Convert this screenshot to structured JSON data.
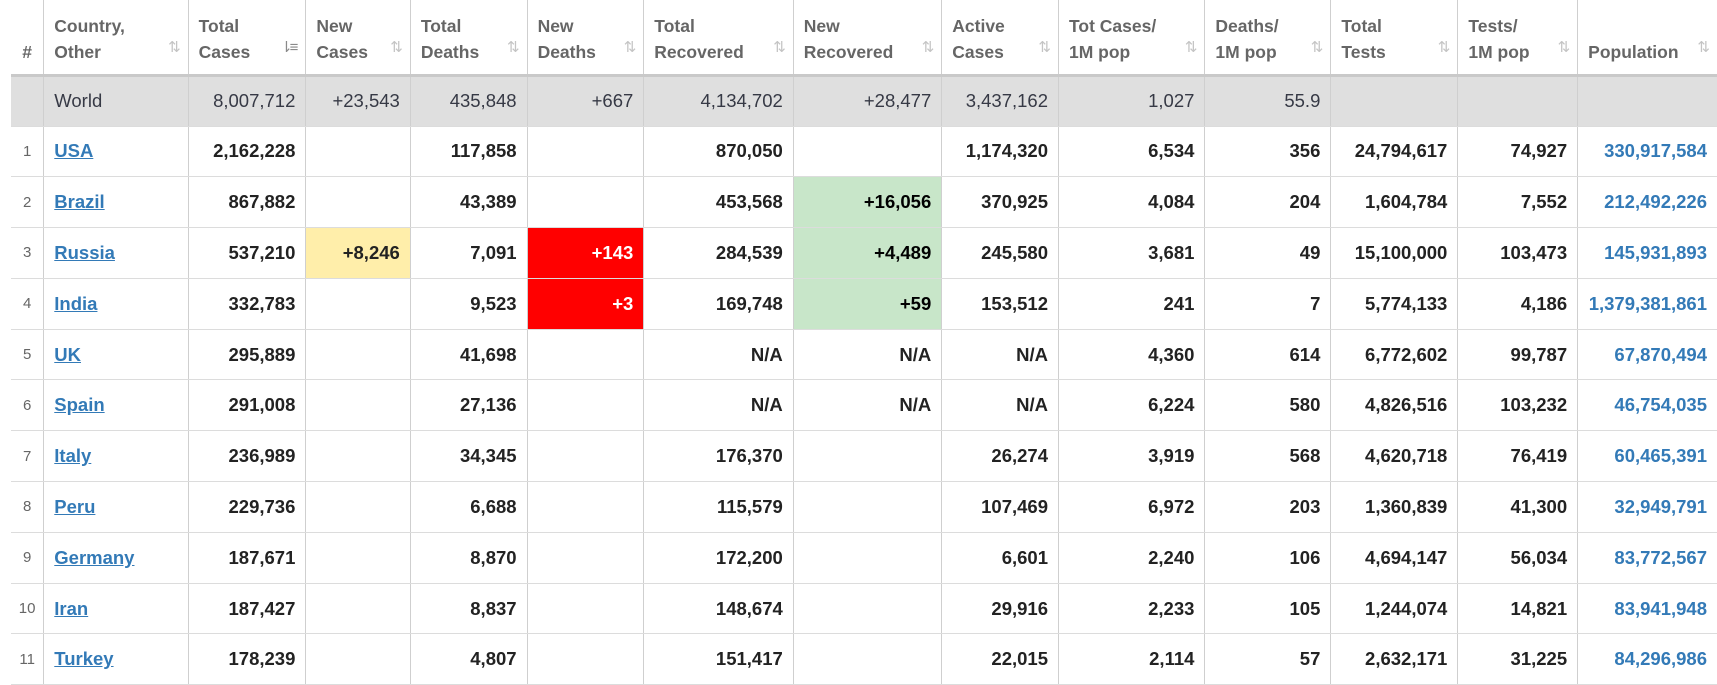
{
  "colors": {
    "new_cases_bg": "#ffeeaa",
    "new_deaths_bg": "#ff0000",
    "new_recovered_bg": "#c8e6c9",
    "link": "#337ab7",
    "world_row_bg": "#dfdfdf"
  },
  "headers": [
    {
      "key": "idx",
      "line1": "#",
      "line2": "",
      "sort_icon": ""
    },
    {
      "key": "country",
      "line1": "Country,",
      "line2": "Other",
      "sort_icon": "⇅"
    },
    {
      "key": "total_cases",
      "line1": "Total",
      "line2": "Cases",
      "sort_icon": "⇂≡"
    },
    {
      "key": "new_cases",
      "line1": "New",
      "line2": "Cases",
      "sort_icon": "⇅"
    },
    {
      "key": "total_deaths",
      "line1": "Total",
      "line2": "Deaths",
      "sort_icon": "⇅"
    },
    {
      "key": "new_deaths",
      "line1": "New",
      "line2": "Deaths",
      "sort_icon": "⇅"
    },
    {
      "key": "total_recovered",
      "line1": "Total",
      "line2": "Recovered",
      "sort_icon": "⇅"
    },
    {
      "key": "new_recovered",
      "line1": "New",
      "line2": "Recovered",
      "sort_icon": "⇅"
    },
    {
      "key": "active",
      "line1": "Active",
      "line2": "Cases",
      "sort_icon": "⇅"
    },
    {
      "key": "cases_per_m",
      "line1": "Tot Cases/",
      "line2": "1M pop",
      "sort_icon": "⇅"
    },
    {
      "key": "deaths_per_m",
      "line1": "Deaths/",
      "line2": "1M pop",
      "sort_icon": "⇅"
    },
    {
      "key": "total_tests",
      "line1": "Total",
      "line2": "Tests",
      "sort_icon": "⇅"
    },
    {
      "key": "tests_per_m",
      "line1": "Tests/",
      "line2": "1M pop",
      "sort_icon": "⇅"
    },
    {
      "key": "population",
      "line1": "",
      "line2": "Population",
      "sort_icon": "⇅"
    }
  ],
  "world": {
    "idx": "",
    "country": "World",
    "total_cases": "8,007,712",
    "new_cases": "+23,543",
    "total_deaths": "435,848",
    "new_deaths": "+667",
    "total_recovered": "4,134,702",
    "new_recovered": "+28,477",
    "active": "3,437,162",
    "cases_per_m": "1,027",
    "deaths_per_m": "55.9",
    "total_tests": "",
    "tests_per_m": "",
    "population": ""
  },
  "rows": [
    {
      "idx": "1",
      "country": "USA",
      "total_cases": "2,162,228",
      "new_cases": "",
      "total_deaths": "117,858",
      "new_deaths": "",
      "total_recovered": "870,050",
      "new_recovered": "",
      "active": "1,174,320",
      "cases_per_m": "6,534",
      "deaths_per_m": "356",
      "total_tests": "24,794,617",
      "tests_per_m": "74,927",
      "population": "330,917,584"
    },
    {
      "idx": "2",
      "country": "Brazil",
      "total_cases": "867,882",
      "new_cases": "",
      "total_deaths": "43,389",
      "new_deaths": "",
      "total_recovered": "453,568",
      "new_recovered": "+16,056",
      "active": "370,925",
      "cases_per_m": "4,084",
      "deaths_per_m": "204",
      "total_tests": "1,604,784",
      "tests_per_m": "7,552",
      "population": "212,492,226"
    },
    {
      "idx": "3",
      "country": "Russia",
      "total_cases": "537,210",
      "new_cases": "+8,246",
      "total_deaths": "7,091",
      "new_deaths": "+143",
      "total_recovered": "284,539",
      "new_recovered": "+4,489",
      "active": "245,580",
      "cases_per_m": "3,681",
      "deaths_per_m": "49",
      "total_tests": "15,100,000",
      "tests_per_m": "103,473",
      "population": "145,931,893"
    },
    {
      "idx": "4",
      "country": "India",
      "total_cases": "332,783",
      "new_cases": "",
      "total_deaths": "9,523",
      "new_deaths": "+3",
      "total_recovered": "169,748",
      "new_recovered": "+59",
      "active": "153,512",
      "cases_per_m": "241",
      "deaths_per_m": "7",
      "total_tests": "5,774,133",
      "tests_per_m": "4,186",
      "population": "1,379,381,861"
    },
    {
      "idx": "5",
      "country": "UK",
      "total_cases": "295,889",
      "new_cases": "",
      "total_deaths": "41,698",
      "new_deaths": "",
      "total_recovered": "N/A",
      "new_recovered": "N/A",
      "active": "N/A",
      "cases_per_m": "4,360",
      "deaths_per_m": "614",
      "total_tests": "6,772,602",
      "tests_per_m": "99,787",
      "population": "67,870,494"
    },
    {
      "idx": "6",
      "country": "Spain",
      "total_cases": "291,008",
      "new_cases": "",
      "total_deaths": "27,136",
      "new_deaths": "",
      "total_recovered": "N/A",
      "new_recovered": "N/A",
      "active": "N/A",
      "cases_per_m": "6,224",
      "deaths_per_m": "580",
      "total_tests": "4,826,516",
      "tests_per_m": "103,232",
      "population": "46,754,035"
    },
    {
      "idx": "7",
      "country": "Italy",
      "total_cases": "236,989",
      "new_cases": "",
      "total_deaths": "34,345",
      "new_deaths": "",
      "total_recovered": "176,370",
      "new_recovered": "",
      "active": "26,274",
      "cases_per_m": "3,919",
      "deaths_per_m": "568",
      "total_tests": "4,620,718",
      "tests_per_m": "76,419",
      "population": "60,465,391"
    },
    {
      "idx": "8",
      "country": "Peru",
      "total_cases": "229,736",
      "new_cases": "",
      "total_deaths": "6,688",
      "new_deaths": "",
      "total_recovered": "115,579",
      "new_recovered": "",
      "active": "107,469",
      "cases_per_m": "6,972",
      "deaths_per_m": "203",
      "total_tests": "1,360,839",
      "tests_per_m": "41,300",
      "population": "32,949,791"
    },
    {
      "idx": "9",
      "country": "Germany",
      "total_cases": "187,671",
      "new_cases": "",
      "total_deaths": "8,870",
      "new_deaths": "",
      "total_recovered": "172,200",
      "new_recovered": "",
      "active": "6,601",
      "cases_per_m": "2,240",
      "deaths_per_m": "106",
      "total_tests": "4,694,147",
      "tests_per_m": "56,034",
      "population": "83,772,567"
    },
    {
      "idx": "10",
      "country": "Iran",
      "total_cases": "187,427",
      "new_cases": "",
      "total_deaths": "8,837",
      "new_deaths": "",
      "total_recovered": "148,674",
      "new_recovered": "",
      "active": "29,916",
      "cases_per_m": "2,233",
      "deaths_per_m": "105",
      "total_tests": "1,244,074",
      "tests_per_m": "14,821",
      "population": "83,941,948"
    },
    {
      "idx": "11",
      "country": "Turkey",
      "total_cases": "178,239",
      "new_cases": "",
      "total_deaths": "4,807",
      "new_deaths": "",
      "total_recovered": "151,417",
      "new_recovered": "",
      "active": "22,015",
      "cases_per_m": "2,114",
      "deaths_per_m": "57",
      "total_tests": "2,632,171",
      "tests_per_m": "31,225",
      "population": "84,296,986"
    }
  ]
}
